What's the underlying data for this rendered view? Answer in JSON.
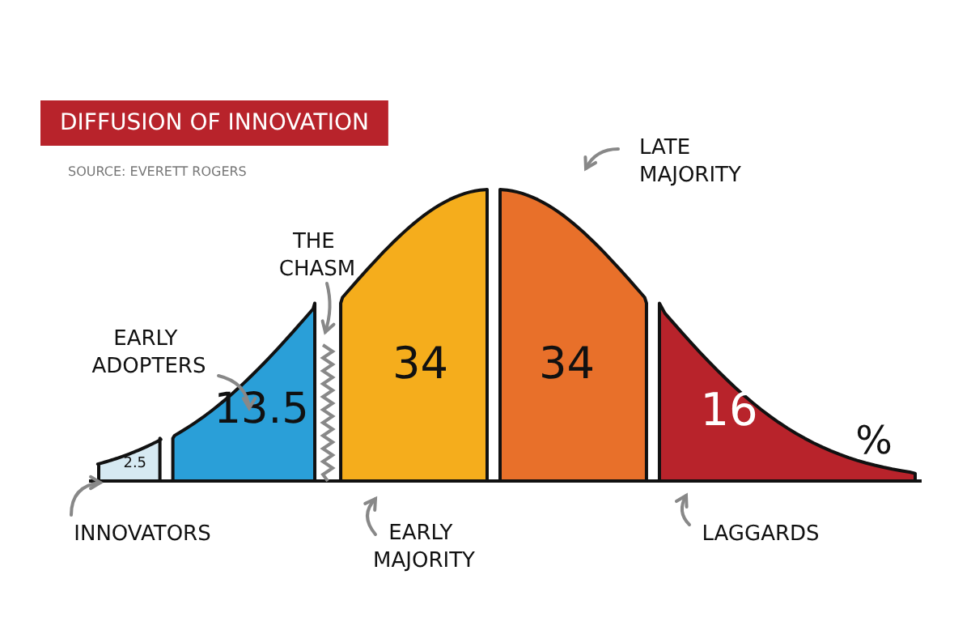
{
  "chart_data": {
    "type": "other",
    "title": "DIFFUSION OF INNOVATION",
    "subtitle": "SOURCE: EVERETT ROGERS",
    "categories": [
      "INNOVATORS",
      "EARLY ADOPTERS",
      "EARLY MAJORITY",
      "LATE MAJORITY",
      "LAGGARDS"
    ],
    "values": [
      2.5,
      13.5,
      34,
      34,
      16
    ],
    "colors": [
      "#d6e9f2",
      "#2a9fd8",
      "#f5ad1c",
      "#e8702a",
      "#b8232b"
    ],
    "data_labels": true,
    "annotations": [
      "THE CHASM",
      "%"
    ]
  }
}
